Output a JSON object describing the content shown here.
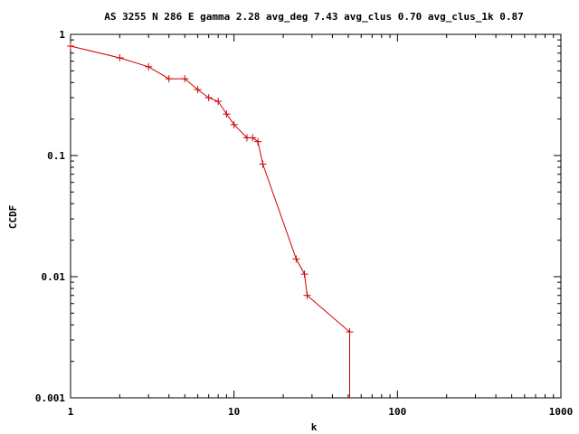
{
  "chart_data": {
    "type": "line",
    "title": "AS 3255 N 286 E gamma 2.28 avg_deg 7.43 avg_clus 0.70 avg_clus_1k 0.87",
    "xlabel": "k",
    "ylabel": "CCDF",
    "x_scale": "log",
    "y_scale": "log",
    "xlim": [
      1,
      1000
    ],
    "ylim": [
      0.001,
      1
    ],
    "x_ticks": [
      1,
      10,
      100,
      1000
    ],
    "x_tick_labels": [
      "1",
      "10",
      "100",
      "1000"
    ],
    "y_ticks": [
      0.001,
      0.01,
      0.1,
      1
    ],
    "y_tick_labels": [
      "0.001",
      "0.01",
      "0.1",
      "1"
    ],
    "grid": false,
    "legend": "none",
    "line_color": "#cc0000",
    "marker": "plus",
    "series": [
      {
        "x": [
          1,
          2,
          3,
          4,
          5,
          6,
          7,
          8,
          9,
          10,
          12,
          13,
          14,
          15,
          24,
          27,
          28,
          51,
          51
        ],
        "y": [
          0.8,
          0.64,
          0.54,
          0.43,
          0.43,
          0.35,
          0.3,
          0.28,
          0.22,
          0.18,
          0.14,
          0.14,
          0.13,
          0.085,
          0.014,
          0.0105,
          0.007,
          0.0035,
          0.001
        ]
      }
    ]
  }
}
